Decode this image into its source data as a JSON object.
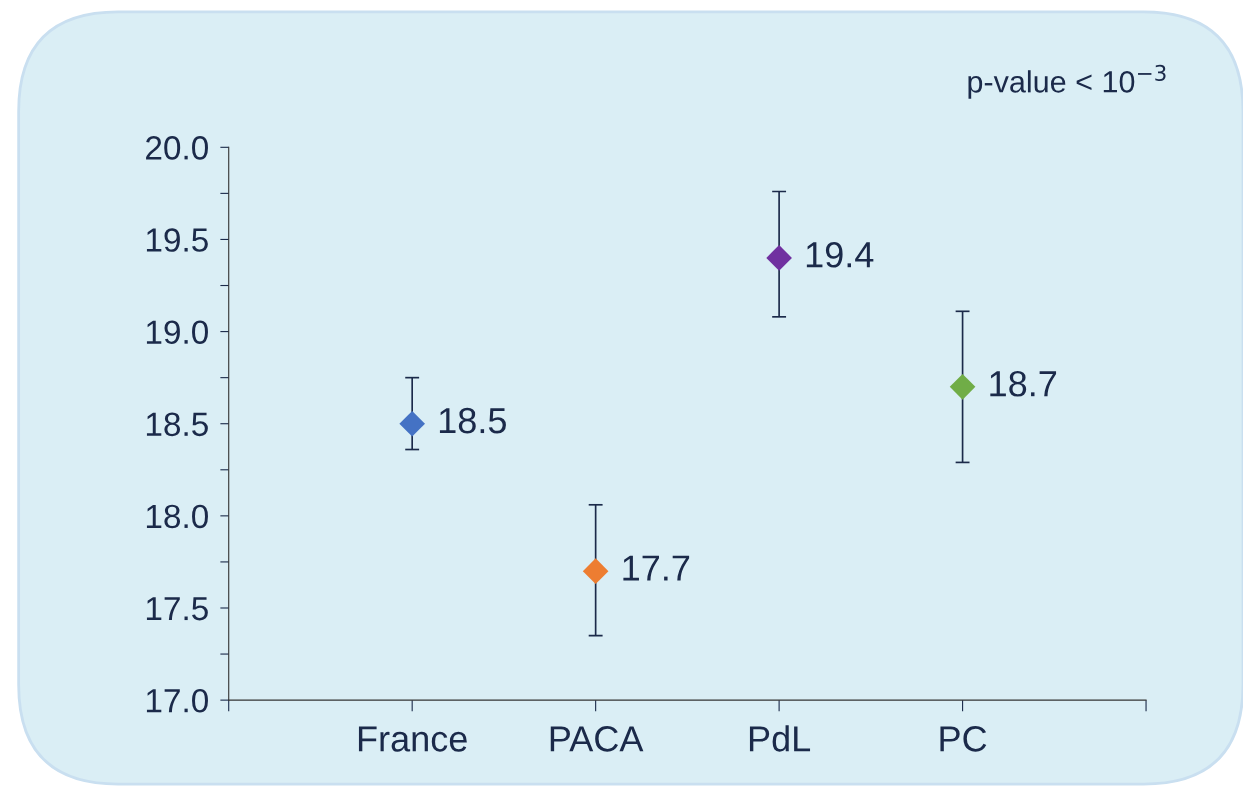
{
  "chart_data": {
    "type": "scatter",
    "categories": [
      "France",
      "PACA",
      "PdL",
      "PC"
    ],
    "values": [
      18.5,
      17.7,
      19.4,
      18.7
    ],
    "colors": [
      "#4472c4",
      "#ed7d31",
      "#7030a0",
      "#70ad47"
    ],
    "errors": [
      [
        18.36,
        18.75
      ],
      [
        17.35,
        18.06
      ],
      [
        19.08,
        19.76
      ],
      [
        18.29,
        19.11
      ]
    ],
    "marker": "diamond",
    "data_labels": true,
    "ylim": [
      17.0,
      20.0
    ],
    "yticks": [
      {
        "value": 17.0,
        "label": "17.0"
      },
      {
        "value": 17.25,
        "label": null
      },
      {
        "value": 17.5,
        "label": "17.5"
      },
      {
        "value": 17.75,
        "label": null
      },
      {
        "value": 18.0,
        "label": "18.0"
      },
      {
        "value": 18.25,
        "label": null
      },
      {
        "value": 18.5,
        "label": "18.5"
      },
      {
        "value": 18.75,
        "label": null
      },
      {
        "value": 19.0,
        "label": "19.0"
      },
      {
        "value": 19.25,
        "label": null
      },
      {
        "value": 19.5,
        "label": "19.5"
      },
      {
        "value": 19.75,
        "label": null
      },
      {
        "value": 20.0,
        "label": "20.0"
      }
    ],
    "grid": false,
    "annotations": [
      "p-value < 10$^{−3}$"
    ]
  }
}
